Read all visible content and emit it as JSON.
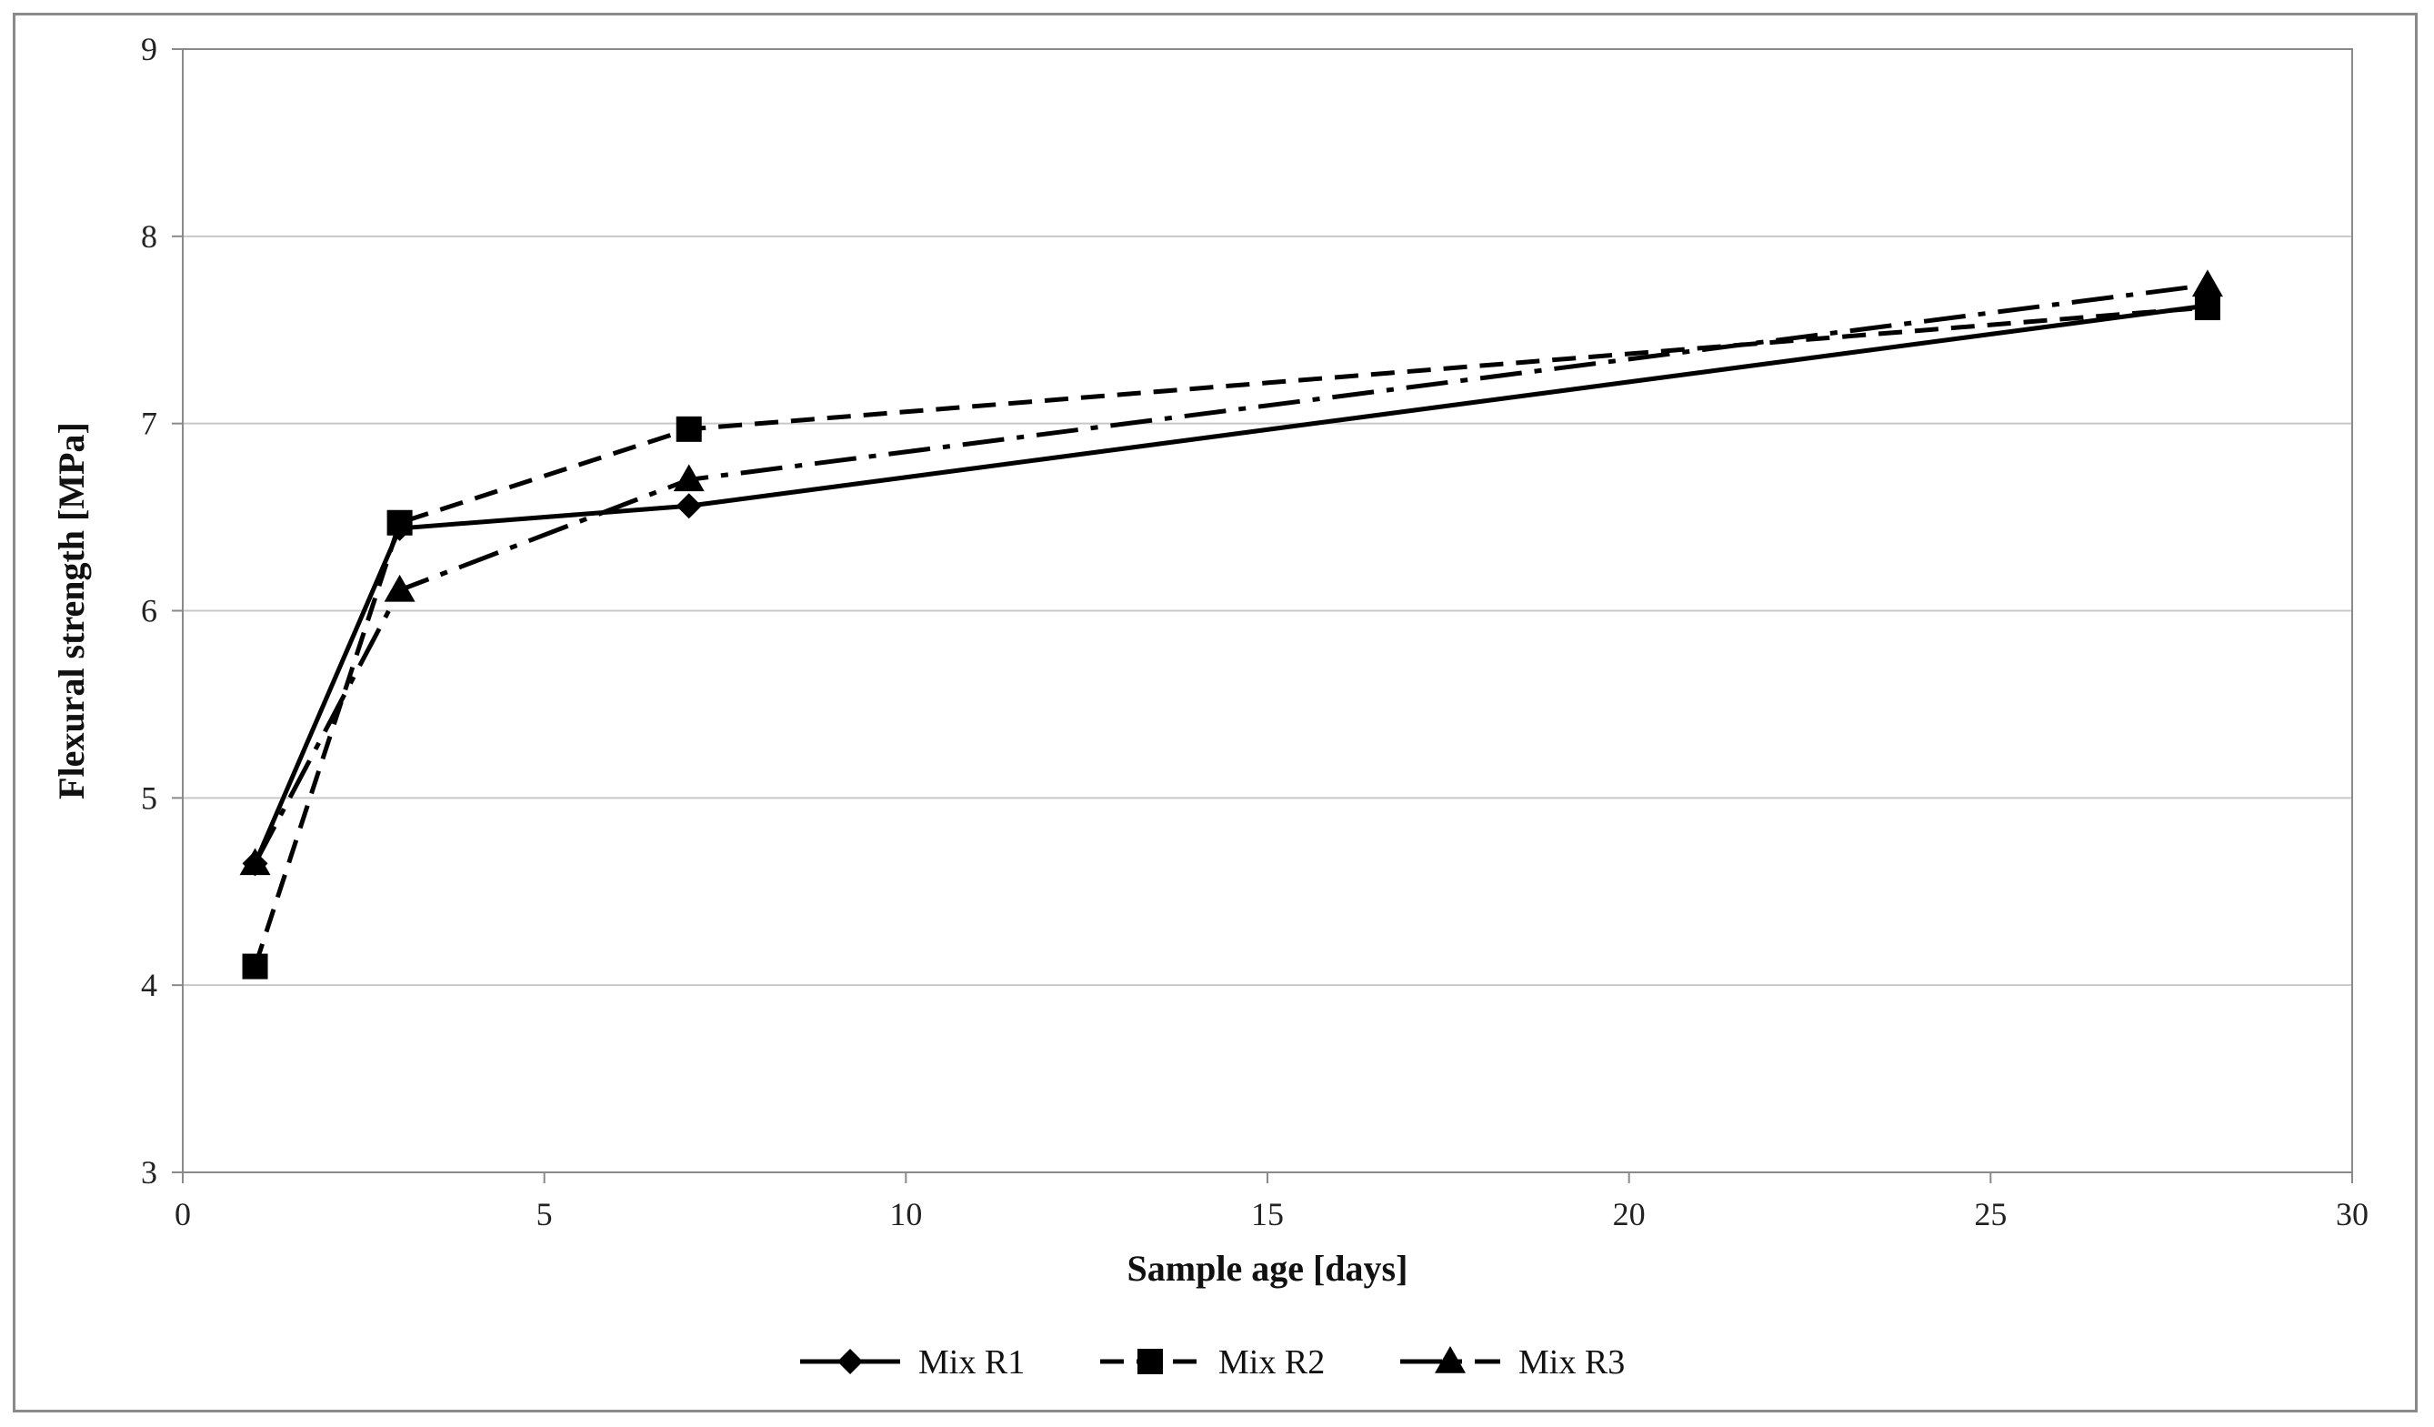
{
  "chart_data": {
    "type": "line",
    "title": "",
    "xlabel": "Sample age [days]",
    "ylabel": "Flexural strength [MPa]",
    "xlim": [
      0,
      30
    ],
    "ylim": [
      3,
      9
    ],
    "xticks": [
      "0",
      "5",
      "10",
      "15",
      "20",
      "25",
      "30"
    ],
    "yticks": [
      "3",
      "4",
      "5",
      "6",
      "7",
      "8",
      "9"
    ],
    "grid": "horizontal",
    "legend_position": "bottom",
    "x": [
      1,
      3,
      7,
      28
    ],
    "series": [
      {
        "name": "Mix R1",
        "values": [
          4.65,
          6.44,
          6.56,
          7.63
        ],
        "marker": "diamond",
        "dash": "solid",
        "color": "#000000"
      },
      {
        "name": "Mix R2",
        "values": [
          4.1,
          6.47,
          6.97,
          7.62
        ],
        "marker": "square",
        "dash": "dashed",
        "color": "#000000"
      },
      {
        "name": "Mix R3",
        "values": [
          4.65,
          6.11,
          6.7,
          7.74
        ],
        "marker": "triangle",
        "dash": "dash-dot",
        "color": "#000000"
      }
    ]
  }
}
